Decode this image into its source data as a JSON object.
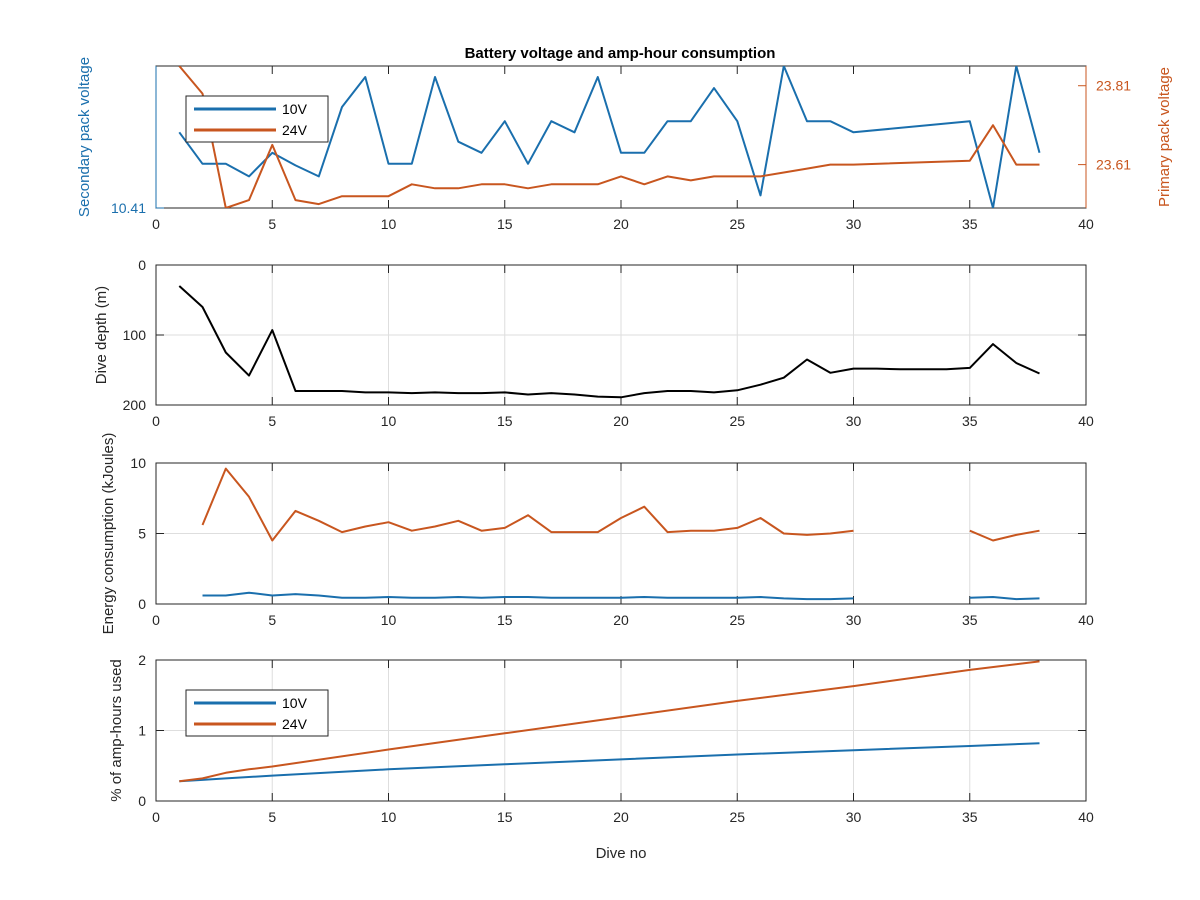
{
  "figure_title": "Battery voltage and amp-hour consumption",
  "colors": {
    "blue": "#1a6fad",
    "orange": "#c8561f",
    "black": "#000000",
    "axis": "#262626",
    "grid": "#dedede"
  },
  "chart_data": [
    {
      "type": "line",
      "title": "Battery voltage and amp-hour consumption",
      "xlabel": "",
      "ylabel_left": "Secondary pack voltage",
      "ylabel_right": "Primary pack voltage",
      "xlim": [
        0,
        40
      ],
      "xticks": [
        "0",
        "5",
        "10",
        "15",
        "20",
        "25",
        "30",
        "35",
        "40"
      ],
      "ylim_left": [
        10.41,
        10.5
      ],
      "yticks_left": [
        "10.41"
      ],
      "ylim_right": [
        23.5,
        23.86
      ],
      "yticks_right": [
        "23.61",
        "23.81"
      ],
      "grid": false,
      "legend": {
        "position": "top-left",
        "entries": [
          "10V",
          "24V"
        ]
      },
      "series": [
        {
          "name": "10V",
          "axis": "left",
          "color": "#1a6fad",
          "x": [
            1,
            2,
            3,
            4,
            5,
            6,
            7,
            8,
            9,
            10,
            11,
            12,
            13,
            14,
            15,
            16,
            17,
            18,
            19,
            20,
            21,
            22,
            23,
            24,
            25,
            26,
            27,
            28,
            29,
            30,
            35,
            36,
            37,
            38
          ],
          "y": [
            10.458,
            10.438,
            10.438,
            10.43,
            10.445,
            10.437,
            10.43,
            10.474,
            10.493,
            10.438,
            10.438,
            10.493,
            10.452,
            10.445,
            10.465,
            10.438,
            10.465,
            10.458,
            10.493,
            10.445,
            10.445,
            10.465,
            10.465,
            10.486,
            10.465,
            10.418,
            10.5,
            10.465,
            10.465,
            10.458,
            10.465,
            10.41,
            10.5,
            10.445
          ]
        },
        {
          "name": "24V",
          "axis": "right",
          "color": "#c8561f",
          "x": [
            1,
            2,
            3,
            4,
            5,
            6,
            7,
            8,
            9,
            10,
            11,
            12,
            13,
            14,
            15,
            16,
            17,
            18,
            19,
            20,
            21,
            22,
            23,
            24,
            25,
            26,
            27,
            28,
            29,
            30,
            35,
            36,
            37,
            38
          ],
          "y": [
            23.86,
            23.79,
            23.5,
            23.52,
            23.66,
            23.52,
            23.51,
            23.53,
            23.53,
            23.53,
            23.56,
            23.55,
            23.55,
            23.56,
            23.56,
            23.55,
            23.56,
            23.56,
            23.56,
            23.58,
            23.56,
            23.58,
            23.57,
            23.58,
            23.58,
            23.58,
            23.59,
            23.6,
            23.61,
            23.61,
            23.62,
            23.71,
            23.61,
            23.61
          ]
        }
      ]
    },
    {
      "type": "line",
      "xlabel": "",
      "ylabel": "Dive depth (m)",
      "xlim": [
        0,
        40
      ],
      "xticks": [
        "0",
        "5",
        "10",
        "15",
        "20",
        "25",
        "30",
        "35",
        "40"
      ],
      "ylim": [
        0,
        200
      ],
      "y_reversed": true,
      "yticks": [
        "0",
        "100",
        "200"
      ],
      "grid": true,
      "series": [
        {
          "color": "#000000",
          "x": [
            1,
            2,
            3,
            4,
            5,
            6,
            7,
            8,
            9,
            10,
            11,
            12,
            13,
            14,
            15,
            16,
            17,
            18,
            19,
            20,
            21,
            22,
            23,
            24,
            25,
            26,
            27,
            28,
            29,
            30,
            31,
            32,
            33,
            34,
            35,
            36,
            37,
            38
          ],
          "y": [
            30,
            60,
            125,
            158,
            93,
            180,
            180,
            180,
            182,
            182,
            183,
            182,
            183,
            183,
            182,
            185,
            183,
            185,
            188,
            189,
            183,
            180,
            180,
            182,
            179,
            171,
            161,
            135,
            154,
            148,
            148,
            149,
            149,
            149,
            147,
            113,
            140,
            155
          ]
        }
      ]
    },
    {
      "type": "line",
      "xlabel": "",
      "ylabel": "Energy consumption (kJoules)",
      "xlim": [
        0,
        40
      ],
      "xticks": [
        "0",
        "5",
        "10",
        "15",
        "20",
        "25",
        "30",
        "35",
        "40"
      ],
      "ylim": [
        0,
        10
      ],
      "yticks": [
        "0",
        "5",
        "10"
      ],
      "grid": true,
      "series": [
        {
          "name": "10V",
          "color": "#1a6fad",
          "segments": [
            {
              "x": [
                2,
                3,
                4,
                5,
                6,
                7,
                8,
                9,
                10,
                11,
                12,
                13,
                14,
                15,
                16,
                17,
                18,
                19,
                20,
                21,
                22,
                23,
                24,
                25,
                26,
                27,
                28,
                29,
                30
              ],
              "y": [
                0.6,
                0.6,
                0.8,
                0.6,
                0.7,
                0.6,
                0.45,
                0.45,
                0.5,
                0.45,
                0.45,
                0.5,
                0.45,
                0.5,
                0.5,
                0.45,
                0.45,
                0.45,
                0.45,
                0.5,
                0.45,
                0.45,
                0.45,
                0.45,
                0.5,
                0.4,
                0.35,
                0.35,
                0.4
              ]
            },
            {
              "x": [
                35,
                36,
                37,
                38
              ],
              "y": [
                0.45,
                0.5,
                0.35,
                0.4
              ]
            }
          ]
        },
        {
          "name": "24V",
          "color": "#c8561f",
          "segments": [
            {
              "x": [
                2,
                3,
                4,
                5,
                6,
                7,
                8,
                9,
                10,
                11,
                12,
                13,
                14,
                15,
                16,
                17,
                18,
                19,
                20,
                21,
                22,
                23,
                24,
                25,
                26,
                27,
                28,
                29,
                30
              ],
              "y": [
                5.6,
                9.6,
                7.6,
                4.5,
                6.6,
                5.9,
                5.1,
                5.5,
                5.8,
                5.2,
                5.5,
                5.9,
                5.2,
                5.4,
                6.3,
                5.1,
                5.1,
                5.1,
                6.1,
                6.9,
                5.1,
                5.2,
                5.2,
                5.4,
                6.1,
                5.0,
                4.9,
                5.0,
                5.2
              ]
            },
            {
              "x": [
                35,
                36,
                37,
                38
              ],
              "y": [
                5.2,
                4.5,
                4.9,
                5.2
              ]
            }
          ]
        }
      ]
    },
    {
      "type": "line",
      "xlabel": "Dive no",
      "ylabel": "% of amp-hours used",
      "xlim": [
        0,
        40
      ],
      "xticks": [
        "0",
        "5",
        "10",
        "15",
        "20",
        "25",
        "30",
        "35",
        "40"
      ],
      "ylim": [
        0,
        2
      ],
      "yticks": [
        "0",
        "1",
        "2"
      ],
      "grid": true,
      "legend": {
        "position": "top-left",
        "entries": [
          "10V",
          "24V"
        ]
      },
      "series": [
        {
          "name": "10V",
          "color": "#1a6fad",
          "x": [
            1,
            2,
            3,
            5,
            10,
            15,
            20,
            25,
            30,
            35,
            38
          ],
          "y": [
            0.28,
            0.3,
            0.32,
            0.36,
            0.45,
            0.52,
            0.59,
            0.66,
            0.72,
            0.78,
            0.82
          ]
        },
        {
          "name": "24V",
          "color": "#c8561f",
          "x": [
            1,
            2,
            3,
            4,
            5,
            10,
            15,
            20,
            25,
            30,
            35,
            38
          ],
          "y": [
            0.28,
            0.32,
            0.4,
            0.45,
            0.49,
            0.73,
            0.96,
            1.19,
            1.42,
            1.63,
            1.86,
            1.98
          ]
        }
      ]
    }
  ]
}
